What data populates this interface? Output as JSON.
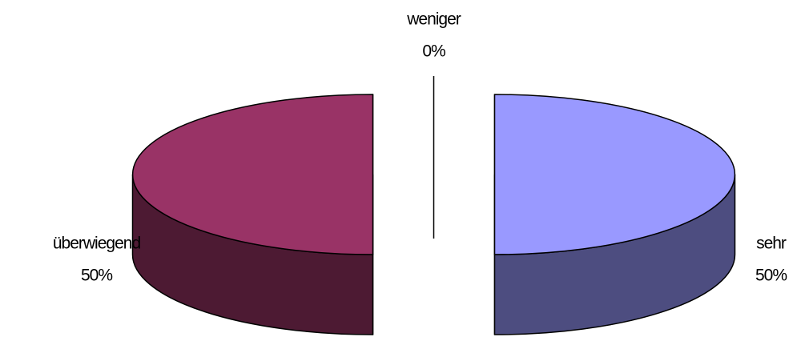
{
  "chart_data": {
    "type": "pie3d",
    "categories": [
      "sehr",
      "überwiegend",
      "weniger"
    ],
    "values": [
      50,
      50,
      0
    ],
    "value_labels": [
      "50%",
      "50%",
      "0%"
    ],
    "colors": [
      "#9999ff",
      "#993366",
      "#ffffcc"
    ]
  }
}
